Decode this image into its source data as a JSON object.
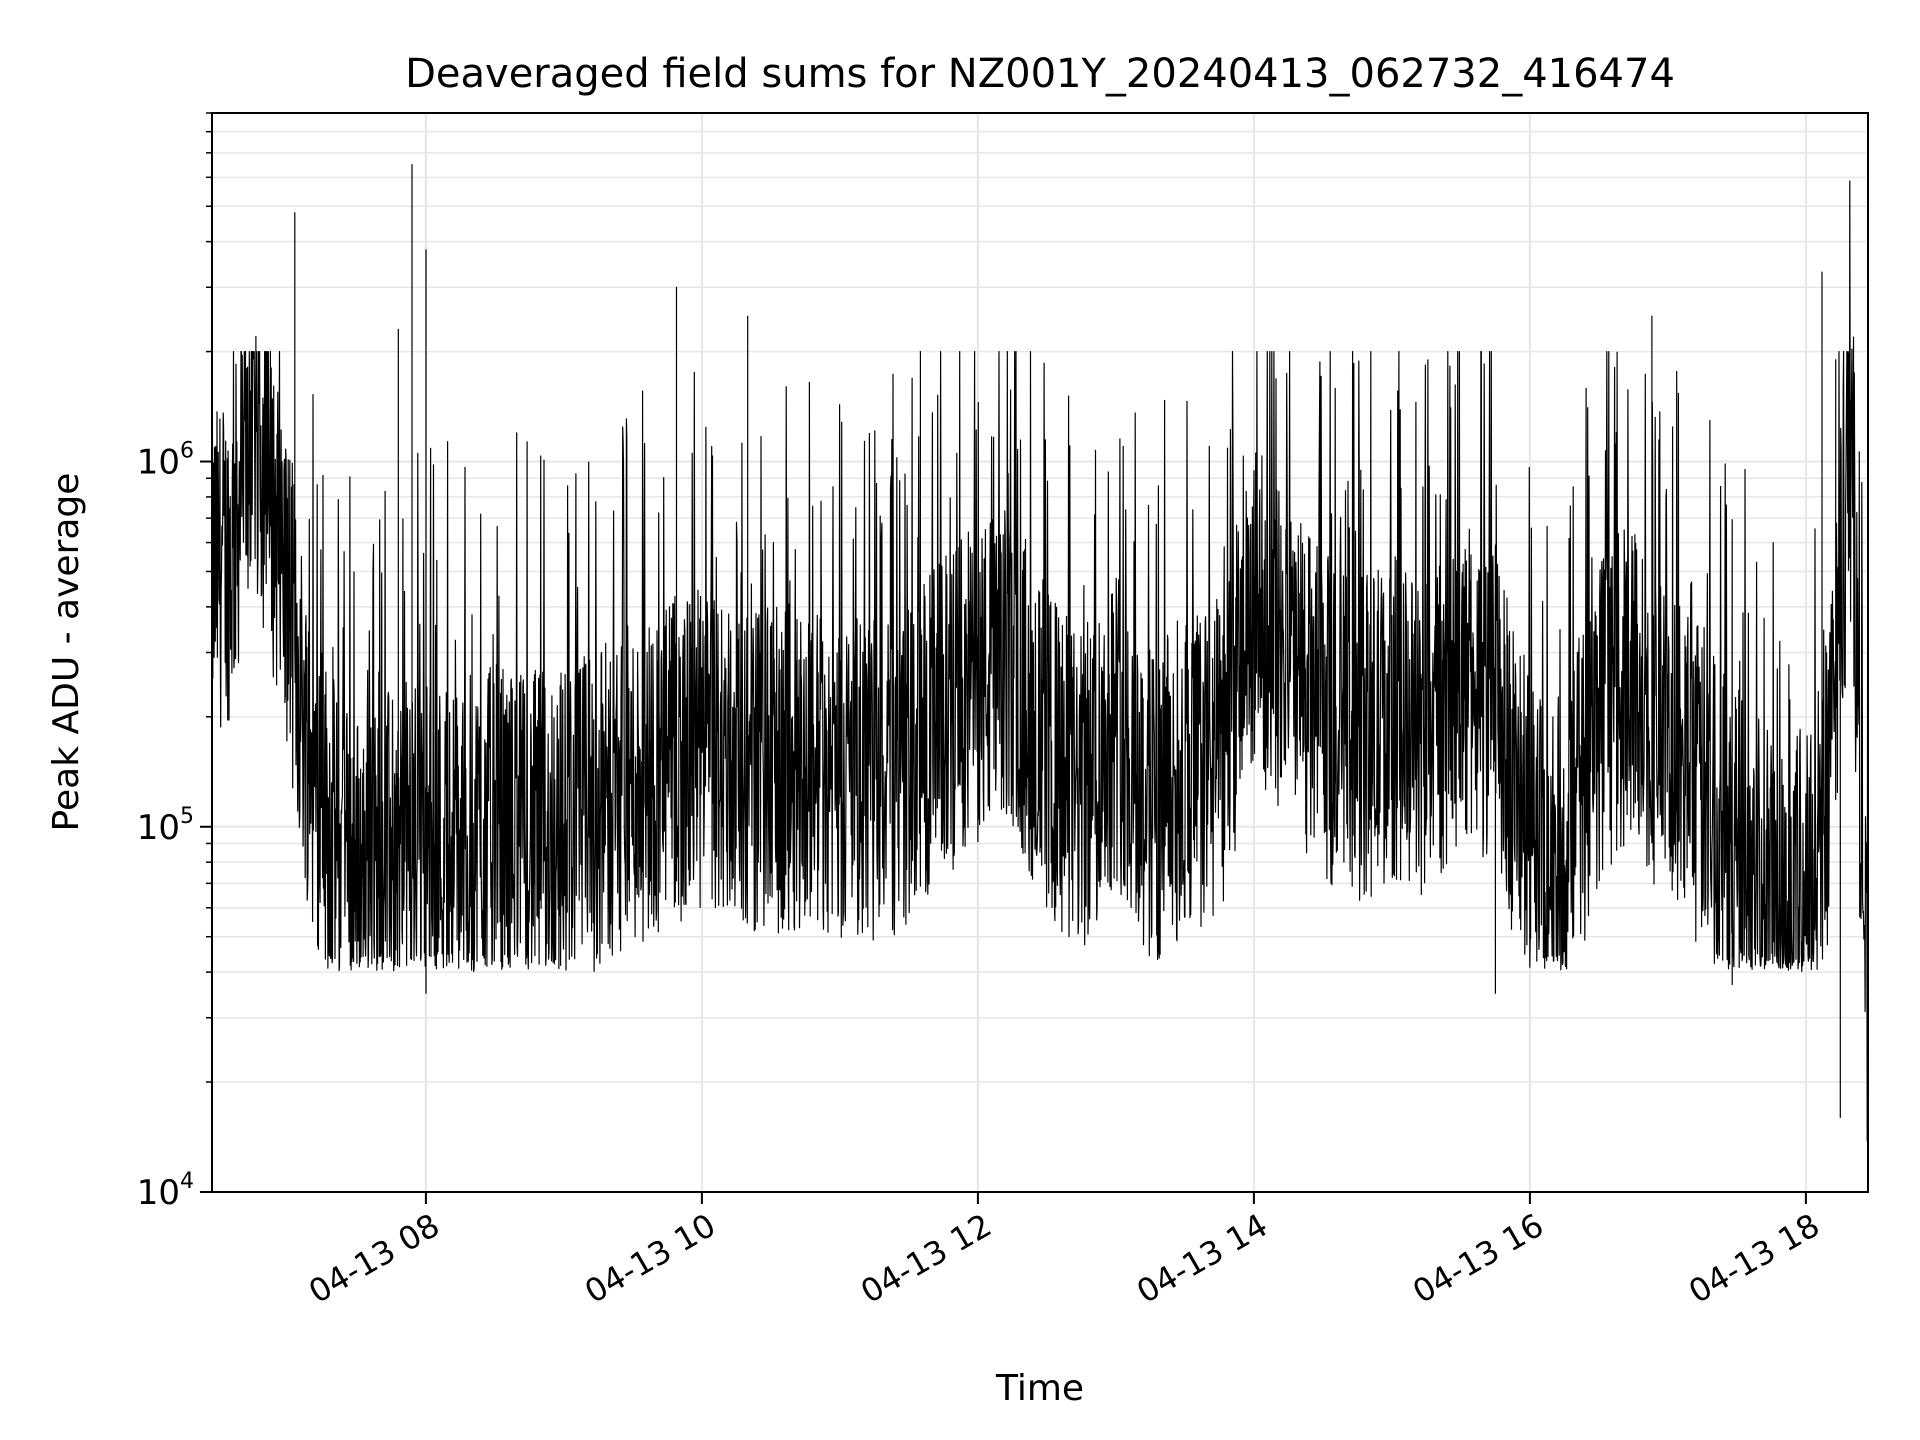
{
  "chart_data": {
    "type": "line",
    "title": "Deaveraged field sums for NZ001Y_20240413_062732_416474",
    "xlabel": "Time",
    "ylabel": "Peak ADU - average",
    "yscale": "log",
    "ylim": [
      10000,
      9000000
    ],
    "xlim": [
      "04-13 06:27",
      "04-13 18:27"
    ],
    "grid": true,
    "line_color": "#000000",
    "grid_color": "#e6e6e6",
    "x_ticks": [
      "04-13 08",
      "04-13 10",
      "04-13 12",
      "04-13 14",
      "04-13 16",
      "04-13 18"
    ],
    "y_ticks": [
      {
        "base": "10",
        "exp": "4",
        "value": 10000
      },
      {
        "base": "10",
        "exp": "5",
        "value": 100000
      },
      {
        "base": "10",
        "exp": "6",
        "value": 1000000
      }
    ],
    "series": [
      {
        "x": [
          "06:27",
          "06:35",
          "06:45",
          "06:55",
          "07:00",
          "07:05",
          "07:10",
          "07:20",
          "07:30",
          "07:40",
          "07:50",
          "08:00",
          "08:15",
          "08:30",
          "08:45",
          "09:00",
          "09:15",
          "09:30",
          "09:45",
          "10:00",
          "10:15",
          "10:30",
          "10:45",
          "11:00",
          "11:15",
          "11:30",
          "11:45",
          "12:00",
          "12:15",
          "12:30",
          "12:45",
          "13:00",
          "13:15",
          "13:30",
          "13:45",
          "14:00",
          "14:15",
          "14:30",
          "14:45",
          "15:00",
          "15:15",
          "15:30",
          "15:45",
          "16:00",
          "16:15",
          "16:30",
          "16:45",
          "17:00",
          "17:15",
          "17:30",
          "17:45",
          "18:00",
          "18:10",
          "18:15",
          "18:20",
          "18:27"
        ],
        "y": [
          500000,
          550000,
          1300000,
          650000,
          450000,
          250000,
          150000,
          90000,
          75000,
          80000,
          90000,
          95000,
          90000,
          100000,
          95000,
          100000,
          110000,
          130000,
          150000,
          160000,
          150000,
          140000,
          150000,
          140000,
          130000,
          150000,
          200000,
          250000,
          270000,
          160000,
          120000,
          200000,
          110000,
          140000,
          150000,
          400000,
          280000,
          200000,
          170000,
          200000,
          170000,
          250000,
          220000,
          90000,
          80000,
          200000,
          250000,
          160000,
          130000,
          90000,
          65000,
          70000,
          120000,
          500000,
          900000,
          25000
        ],
        "spikes": [
          {
            "x": "06:46",
            "y": 2200000
          },
          {
            "x": "07:03",
            "y": 4800000
          },
          {
            "x": "07:48",
            "y": 2300000
          },
          {
            "x": "07:54",
            "y": 6500000
          },
          {
            "x": "08:00",
            "y": 3800000
          },
          {
            "x": "09:49",
            "y": 3000000
          },
          {
            "x": "10:20",
            "y": 2500000
          },
          {
            "x": "11:35",
            "y": 2000000
          },
          {
            "x": "16:53",
            "y": 2500000
          },
          {
            "x": "18:07",
            "y": 3300000
          },
          {
            "x": "18:13",
            "y": 1900000
          },
          {
            "x": "08:00",
            "y": 35000
          },
          {
            "x": "15:45",
            "y": 35000
          },
          {
            "x": "17:28",
            "y": 37000
          },
          {
            "x": "18:15",
            "y": 16000
          }
        ]
      }
    ]
  }
}
